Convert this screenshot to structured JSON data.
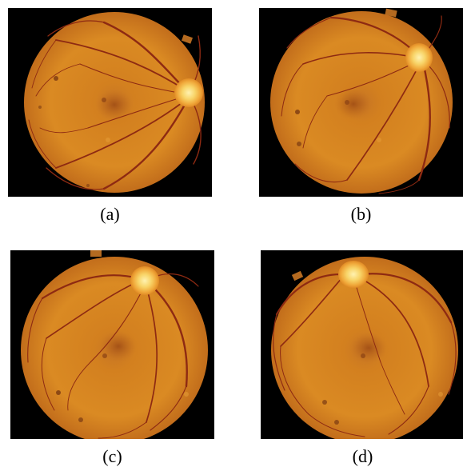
{
  "figure": {
    "panels": [
      {
        "id": "a",
        "caption": "(a)",
        "optic_disc_side": "right"
      },
      {
        "id": "b",
        "caption": "(b)",
        "optic_disc_side": "upper-right"
      },
      {
        "id": "c",
        "caption": "(c)",
        "optic_disc_side": "upper-right"
      },
      {
        "id": "d",
        "caption": "(d)",
        "optic_disc_side": "top-center"
      }
    ]
  },
  "colors": {
    "background": "#000000",
    "fundus_orange": "#d9841e",
    "fundus_dark": "#a85612",
    "optic_disc": "#f8d060",
    "vessel": "#8e2a12"
  }
}
